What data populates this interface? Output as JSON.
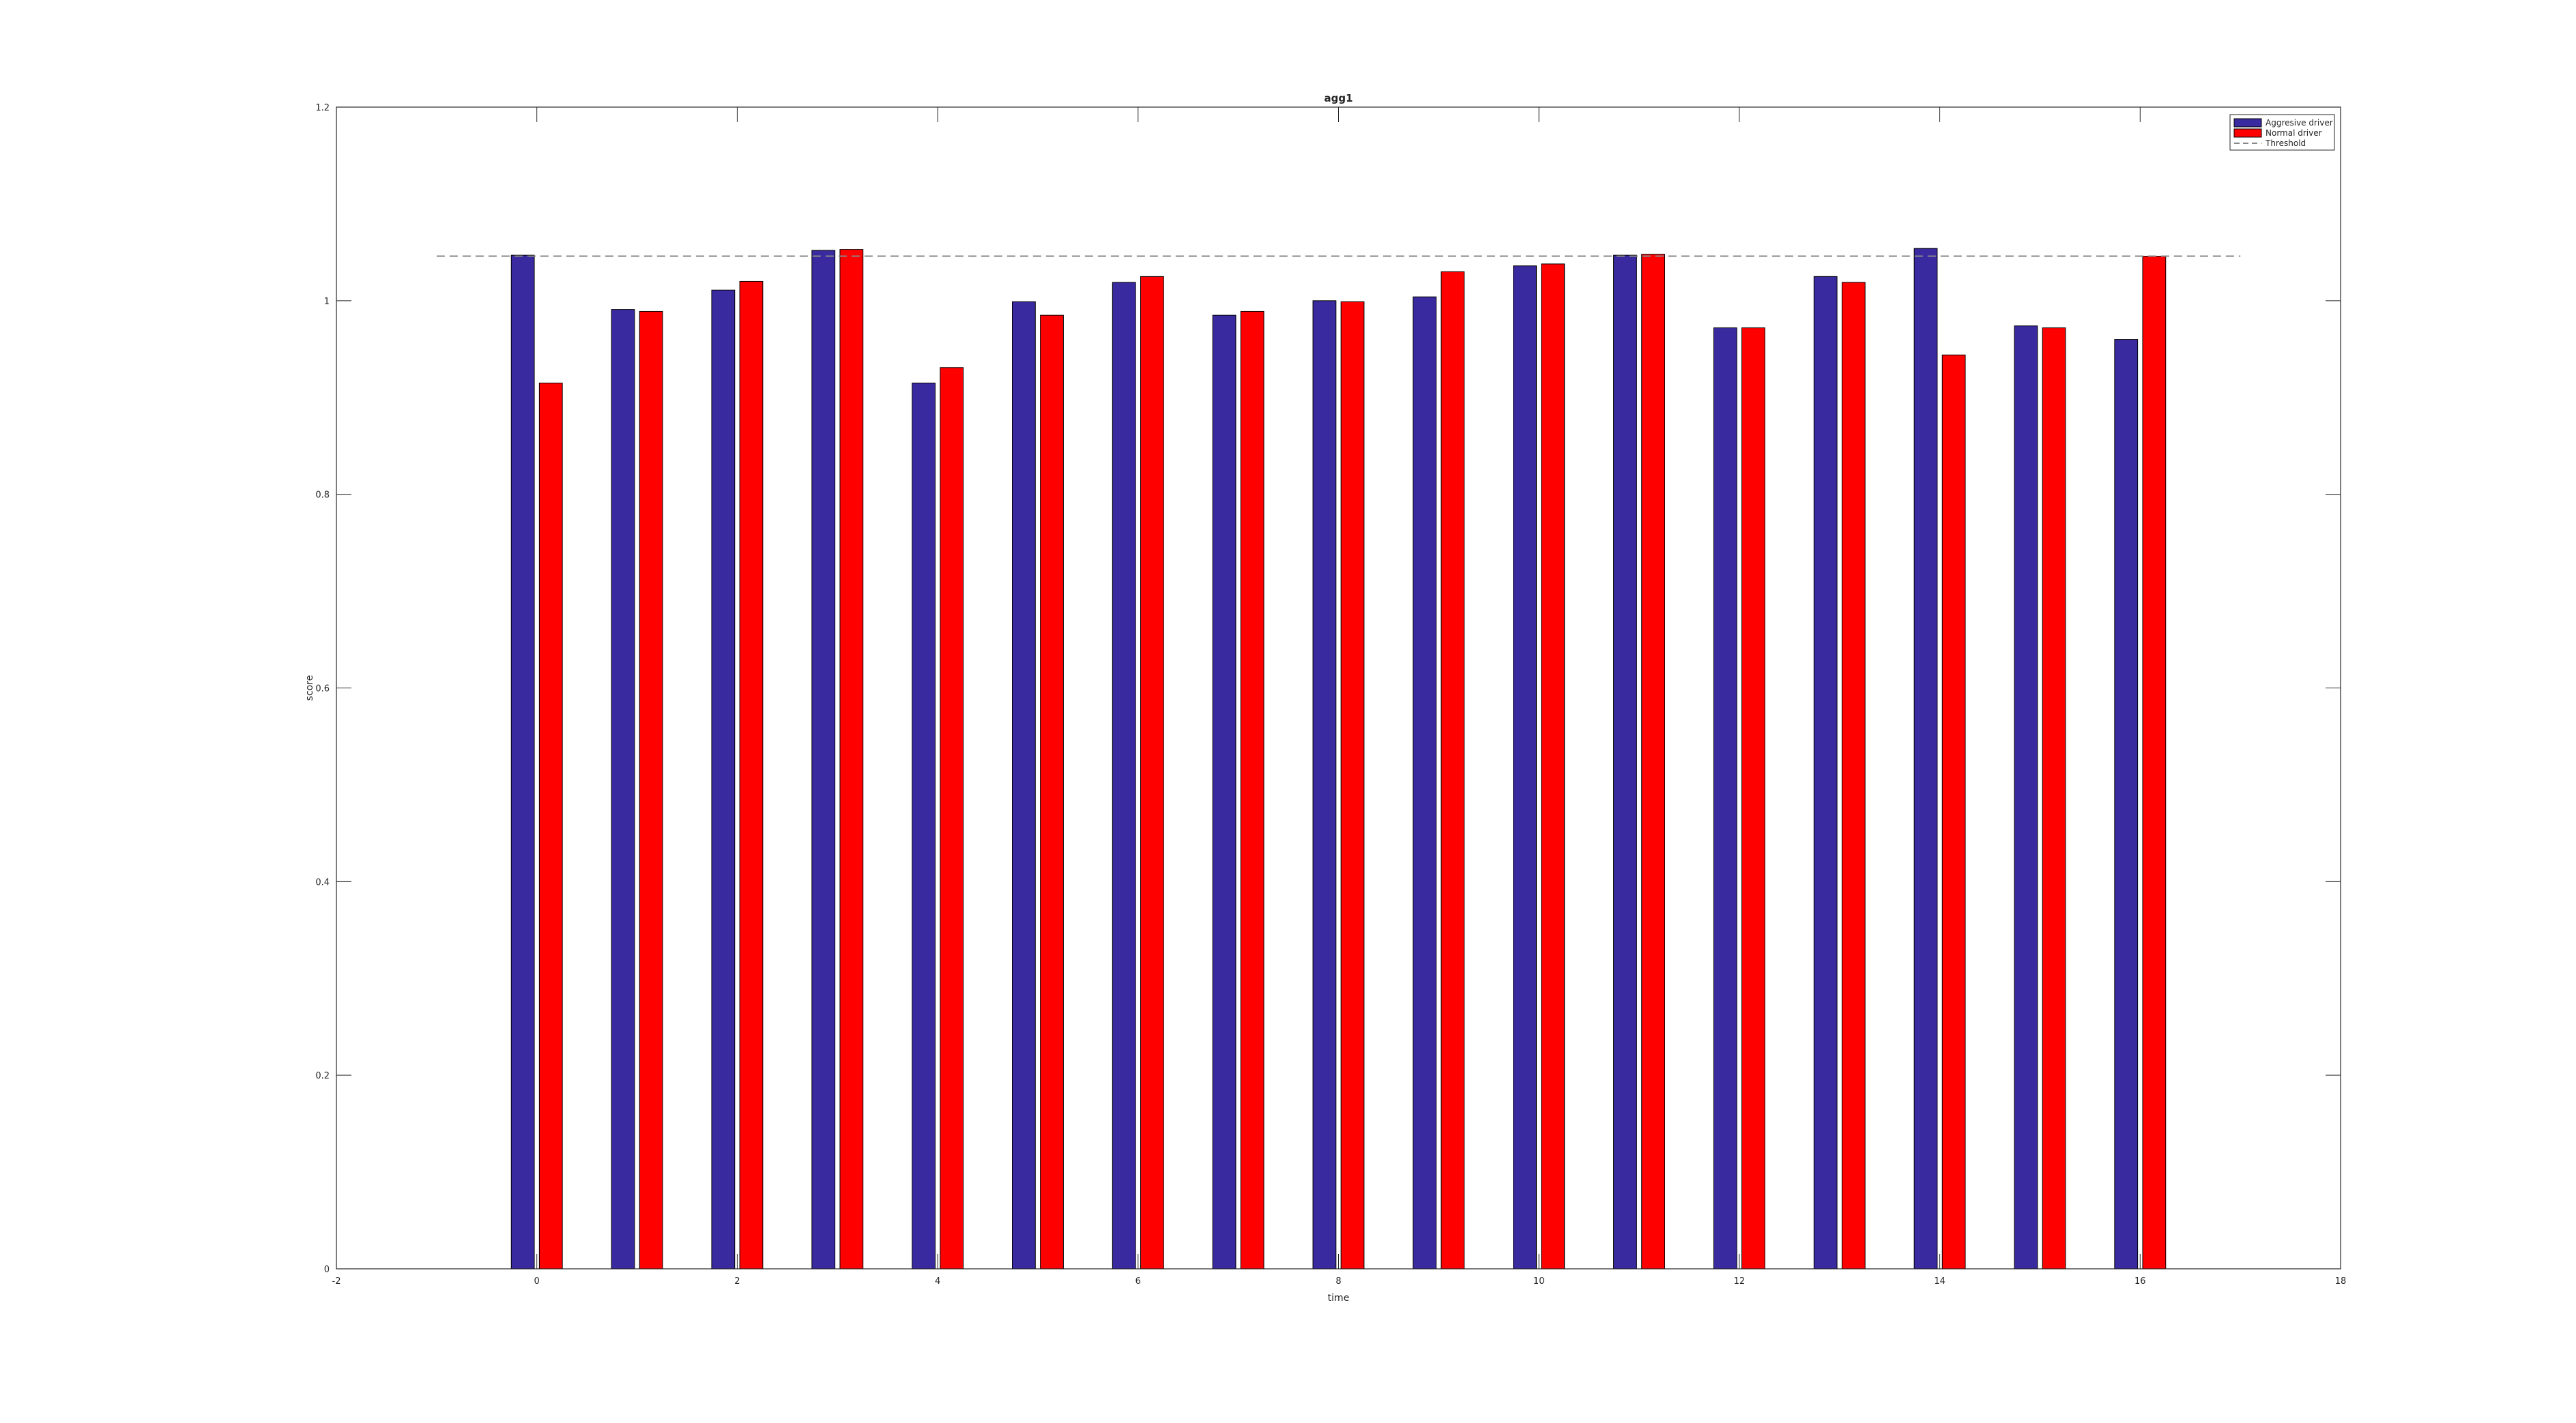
{
  "chart_data": {
    "type": "bar",
    "title": "agg1",
    "xlabel": "time",
    "ylabel": "score",
    "xlim": [
      -2,
      18
    ],
    "ylim": [
      0,
      1.2
    ],
    "xticks": [
      "-2",
      "0",
      "2",
      "4",
      "6",
      "8",
      "10",
      "12",
      "14",
      "16",
      "18"
    ],
    "yticks": [
      "0",
      "0.2",
      "0.4",
      "0.6",
      "0.8",
      "1",
      "1.2"
    ],
    "x": [
      0,
      1,
      2,
      3,
      4,
      5,
      6,
      7,
      8,
      9,
      10,
      11,
      12,
      13,
      14,
      15,
      16
    ],
    "series": [
      {
        "name": "Aggresive driver",
        "color": "#3a2aa0",
        "values": [
          1.047,
          0.991,
          1.011,
          1.052,
          0.915,
          0.999,
          1.019,
          0.985,
          1.0,
          1.004,
          1.036,
          1.047,
          0.972,
          1.025,
          1.054,
          0.974,
          0.96
        ]
      },
      {
        "name": "Normal driver",
        "color": "#ff0000",
        "values": [
          0.915,
          0.989,
          1.02,
          1.053,
          0.931,
          0.985,
          1.025,
          0.989,
          0.999,
          1.03,
          1.038,
          1.048,
          0.972,
          1.019,
          0.944,
          0.972,
          1.046
        ]
      }
    ],
    "threshold": {
      "name": "Threshold",
      "value": 1.046,
      "x_range": [
        -1,
        17
      ],
      "color": "#888888"
    },
    "legend_position": "top-right",
    "grid": false
  }
}
